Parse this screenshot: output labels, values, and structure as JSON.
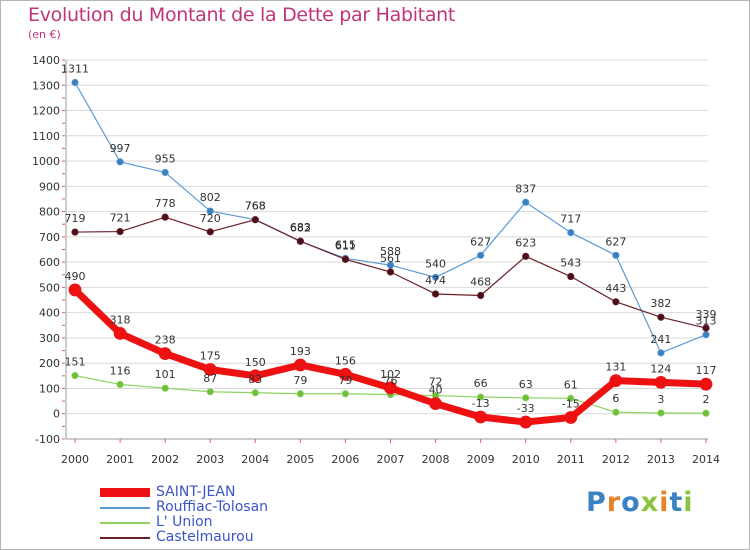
{
  "title": "Evolution du Montant de la Dette par Habitant",
  "unit": "(en €)",
  "logo": {
    "letters": [
      {
        "ch": "P",
        "color": "#3b82c4"
      },
      {
        "ch": "r",
        "color": "#e2842a"
      },
      {
        "ch": "o",
        "color": "#3b82c4"
      },
      {
        "ch": "x",
        "color": "#8cc43d"
      },
      {
        "ch": "i",
        "color": "#e2842a"
      },
      {
        "ch": "t",
        "color": "#3b82c4"
      },
      {
        "ch": "i",
        "color": "#8cc43d"
      }
    ]
  },
  "chart_data": {
    "type": "line",
    "title": "Evolution du Montant de la Dette par Habitant",
    "ylabel": "(en €)",
    "x": [
      "2000",
      "2001",
      "2002",
      "2003",
      "2004",
      "2005",
      "2006",
      "2007",
      "2008",
      "2009",
      "2010",
      "2011",
      "2012",
      "2013",
      "2014"
    ],
    "ylim": [
      -100,
      1400
    ],
    "yticks": [
      -100,
      0,
      100,
      200,
      300,
      400,
      500,
      600,
      700,
      800,
      900,
      1000,
      1100,
      1200,
      1300,
      1400
    ],
    "grid": true,
    "legend": "bottom-left",
    "series": [
      {
        "name": "Rouffiac-Tolosan",
        "color": "#5b9bd5",
        "values": [
          1311,
          997,
          955,
          802,
          768,
          682,
          615,
          588,
          540,
          627,
          837,
          717,
          627,
          241,
          313
        ],
        "labels": [
          "1311",
          "997",
          "955",
          "802",
          "768",
          "682",
          "615",
          "588",
          "540",
          "627",
          "837",
          "717",
          "627",
          "241",
          "313"
        ]
      },
      {
        "name": "Castelmaurou",
        "color": "#6b1f2a",
        "values": [
          719,
          721,
          778,
          720,
          768,
          683,
          611,
          561,
          474,
          468,
          623,
          543,
          443,
          382,
          339
        ],
        "labels": [
          "719",
          "721",
          "778",
          "720",
          "768",
          "683",
          "611",
          "561",
          "474",
          "468",
          "623",
          "543",
          "443",
          "382",
          "339"
        ]
      },
      {
        "name": "L' Union",
        "color": "#8dd35f",
        "values": [
          151,
          116,
          101,
          87,
          83,
          79,
          79,
          76,
          72,
          66,
          63,
          61,
          6,
          3,
          2
        ],
        "labels": [
          "151",
          "116",
          "101",
          "87",
          "83",
          "79",
          "79",
          "76",
          "72",
          "66",
          "63",
          "61",
          "6",
          "3",
          "2"
        ]
      },
      {
        "name": "SAINT-JEAN",
        "color": "#ee1111",
        "values": [
          490,
          318,
          238,
          175,
          150,
          193,
          156,
          102,
          40,
          -13,
          -33,
          -15,
          131,
          124,
          117
        ],
        "labels": [
          "490",
          "318",
          "238",
          "175",
          "150",
          "193",
          "156",
          "102",
          "40",
          "-13",
          "-33",
          "-15",
          "131",
          "124",
          "117"
        ]
      }
    ]
  },
  "legend": [
    {
      "name": "SAINT-JEAN",
      "color": "#ee1111"
    },
    {
      "name": "Rouffiac-Tolosan",
      "color": "#5b9bd5"
    },
    {
      "name": "L' Union",
      "color": "#8dd35f"
    },
    {
      "name": "Castelmaurou",
      "color": "#6b1f2a"
    }
  ]
}
